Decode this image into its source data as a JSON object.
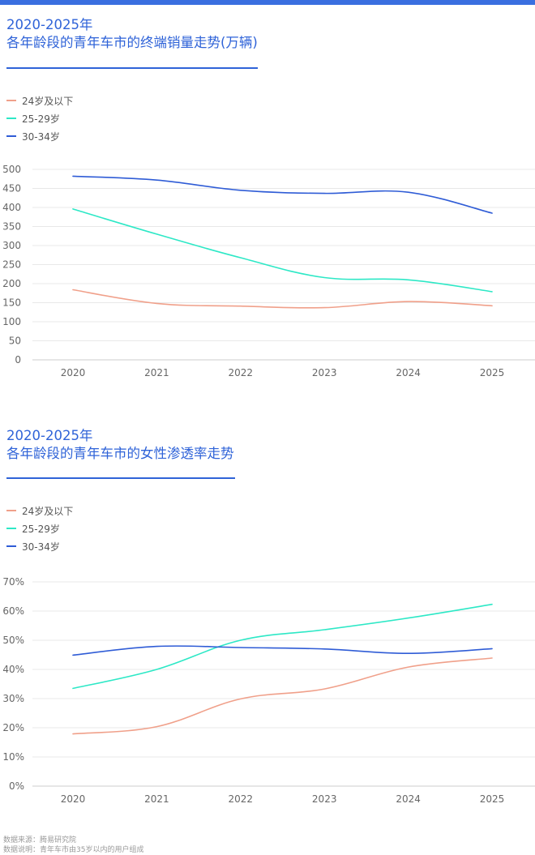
{
  "page": {
    "accent": "#2f63d8"
  },
  "chart_data": [
    {
      "type": "line",
      "title": [
        "2020-2025年",
        "各年龄段的青年车市的终端销量走势(万辆)"
      ],
      "xlabel": "",
      "ylabel": "",
      "x": [
        "2020",
        "2021",
        "2022",
        "2023",
        "2024",
        "2025"
      ],
      "ylim": [
        0,
        500
      ],
      "yticks": [
        0,
        50,
        100,
        150,
        200,
        250,
        300,
        350,
        400,
        450,
        500
      ],
      "yticklabels": [
        "0",
        "50",
        "100",
        "150",
        "200",
        "250",
        "300",
        "350",
        "400",
        "450",
        "500"
      ],
      "grid": true,
      "legend_position": "top-left",
      "series": [
        {
          "name": "24岁及以下",
          "color": "#f0a08a",
          "values": [
            184,
            148,
            141,
            137,
            153,
            142
          ]
        },
        {
          "name": "25-29岁",
          "color": "#2de8c6",
          "values": [
            396,
            330,
            268,
            216,
            210,
            179
          ]
        },
        {
          "name": "30-34岁",
          "color": "#2f5cd6",
          "values": [
            482,
            472,
            445,
            437,
            440,
            385
          ]
        }
      ]
    },
    {
      "type": "line",
      "title": [
        "2020-2025年",
        "各年龄段的青年车市的女性渗透率走势"
      ],
      "xlabel": "",
      "ylabel": "",
      "x": [
        "2020",
        "2021",
        "2022",
        "2023",
        "2024",
        "2025"
      ],
      "ylim": [
        0,
        70
      ],
      "yticks": [
        0,
        10,
        20,
        30,
        40,
        50,
        60,
        70
      ],
      "yticklabels": [
        "0%",
        "10%",
        "20%",
        "30%",
        "40%",
        "50%",
        "60%",
        "70%"
      ],
      "unit": "%",
      "grid": true,
      "legend_position": "top-left",
      "series": [
        {
          "name": "24岁及以下",
          "color": "#f0a08a",
          "values": [
            17.9,
            20.4,
            29.9,
            33.3,
            40.8,
            43.9
          ]
        },
        {
          "name": "25-29岁",
          "color": "#2de8c6",
          "values": [
            33.5,
            40.0,
            50.0,
            53.6,
            57.6,
            62.3
          ]
        },
        {
          "name": "30-34岁",
          "color": "#2f5cd6",
          "values": [
            44.9,
            47.9,
            47.5,
            47.0,
            45.5,
            47.1
          ]
        }
      ]
    }
  ],
  "footer": {
    "source": "数据来源：腾易研究院",
    "note": "数据说明：青年车市由35岁以内的用户组成"
  }
}
